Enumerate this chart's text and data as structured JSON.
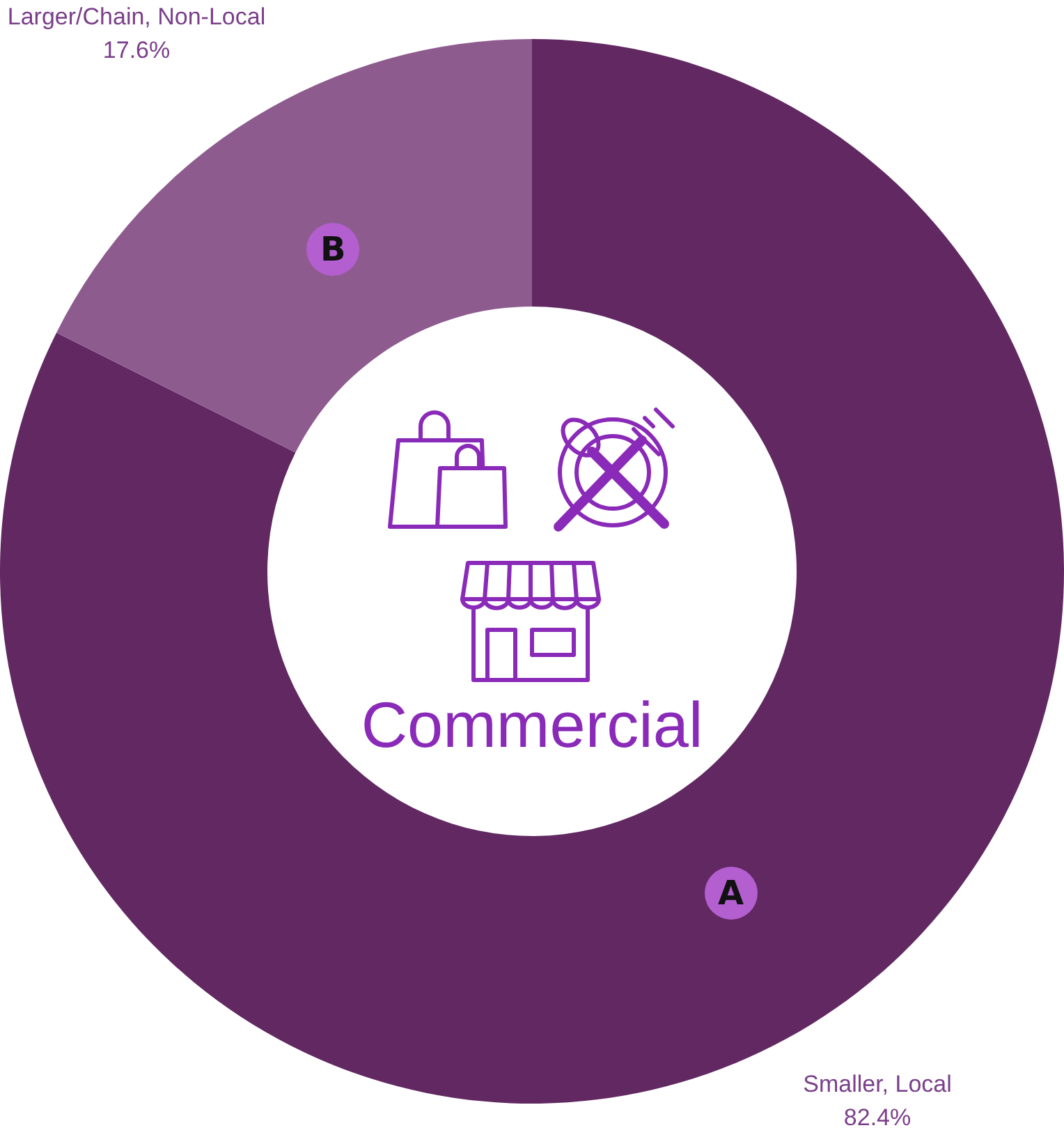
{
  "chart_data": {
    "type": "donut",
    "title": "Commercial",
    "categories": [
      "Smaller, Local",
      "Larger/Chain, Non-Local"
    ],
    "values": [
      82.4,
      17.6
    ],
    "colors": [
      "#612862",
      "#8e5b8e"
    ],
    "value_labels": [
      "82.4%",
      "17.6%"
    ],
    "annotations": [
      {
        "text": "A",
        "x": "Smaller, Local"
      },
      {
        "text": "B",
        "x": "Larger/Chain, Non-Local"
      }
    ],
    "legend": false
  }
}
